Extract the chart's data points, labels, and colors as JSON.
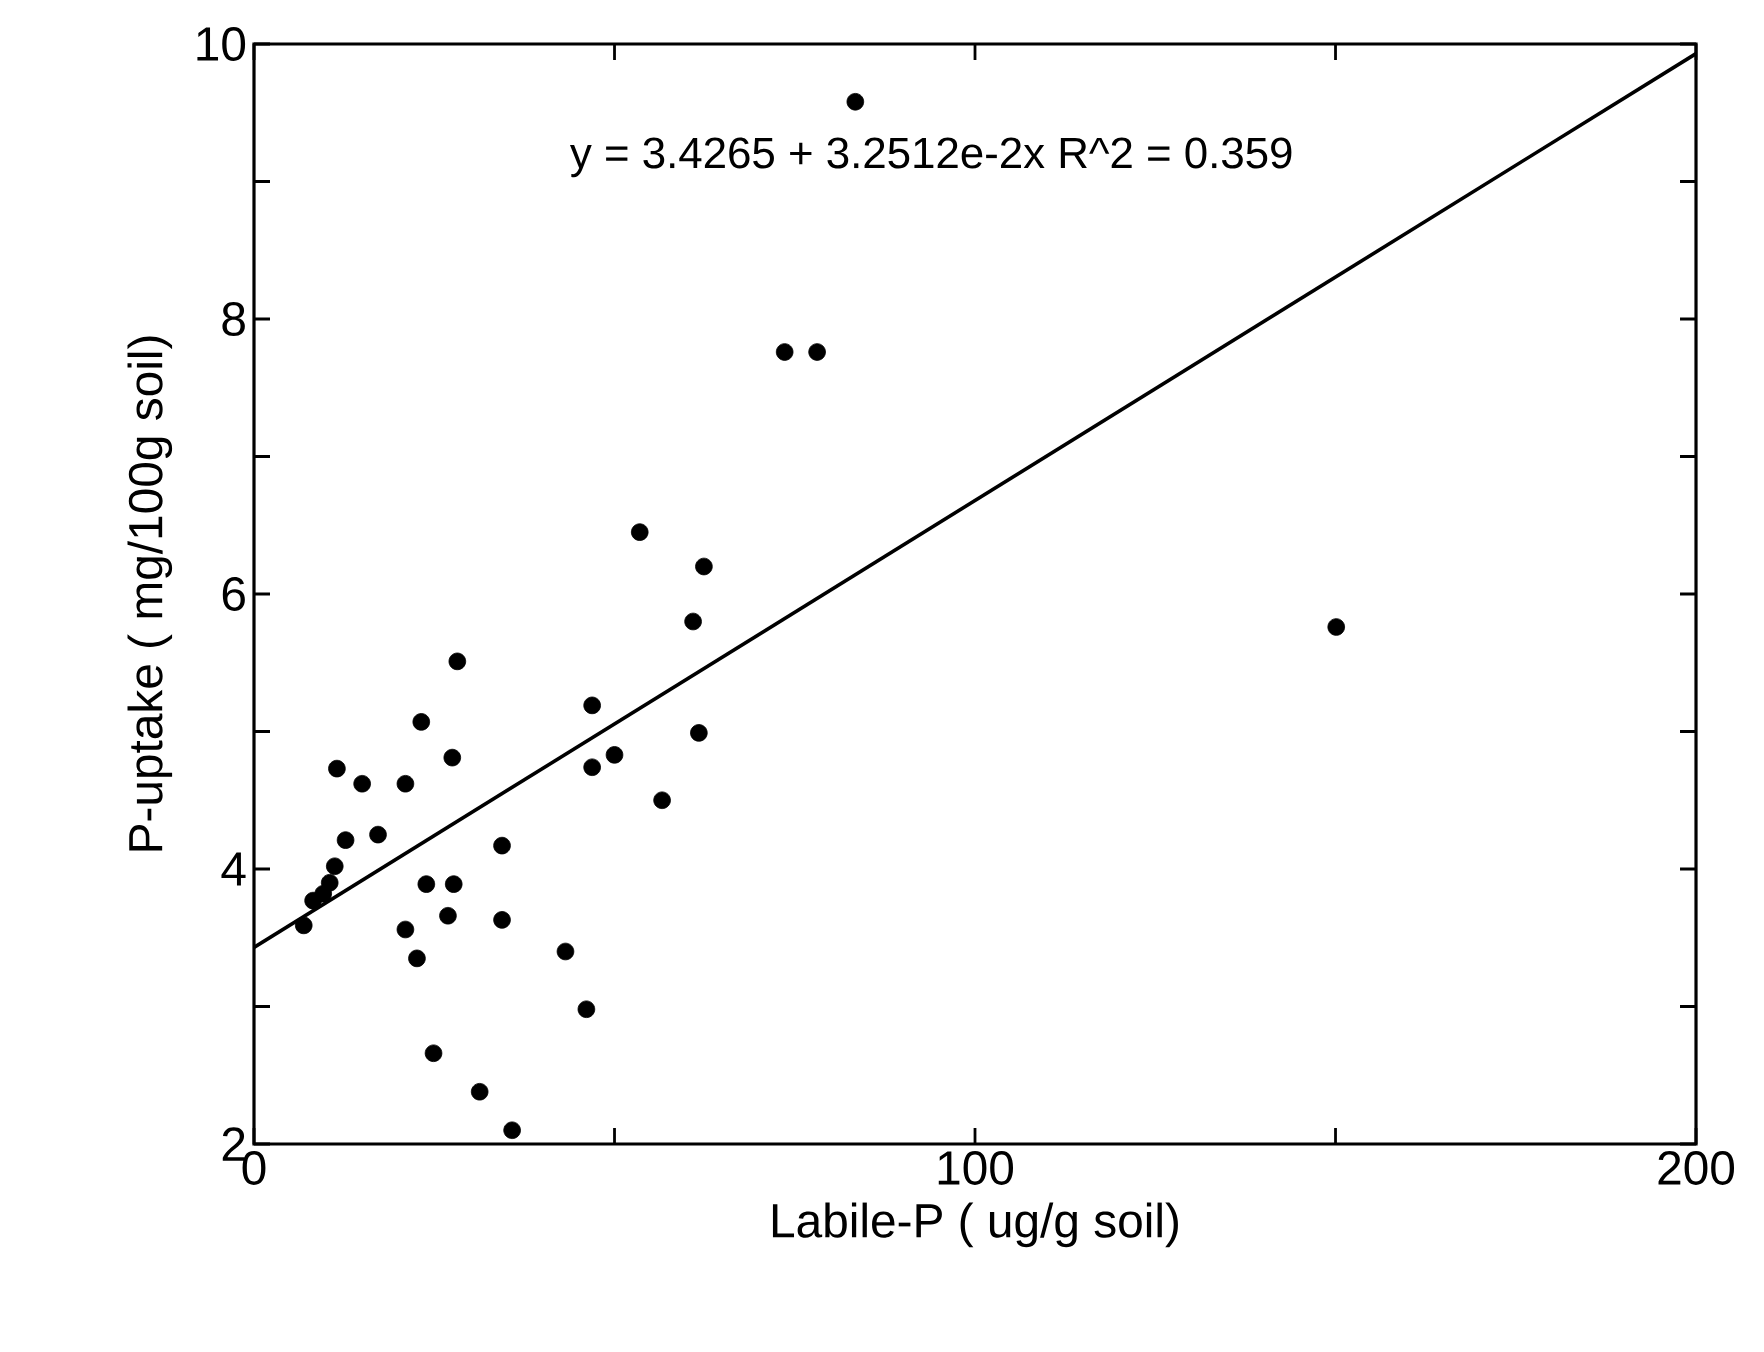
{
  "chart_data": {
    "type": "scatter",
    "xlabel": "Labile-P ( ug/g soil)",
    "ylabel": "P-uptake ( mg/100g soil)",
    "annotations": [
      "y = 3.4265 + 3.2512e-2x   R^2 = 0.359"
    ],
    "xlim": [
      0,
      200
    ],
    "ylim": [
      2,
      10
    ],
    "xticks": [
      0,
      {
        "value": 50,
        "label": null
      },
      100,
      {
        "value": 150,
        "label": null
      },
      200
    ],
    "yticks": [
      2,
      {
        "value": 3,
        "label": null
      },
      4,
      {
        "value": 5,
        "label": null
      },
      6,
      {
        "value": 7,
        "label": null
      },
      8,
      {
        "value": 9,
        "label": null
      },
      10
    ],
    "grid": false,
    "series": [
      {
        "color": "#000000",
        "marker": "circle",
        "x": [
          6.9,
          8.2,
          9.6,
          10.5,
          11.2,
          11.5,
          12.7,
          15.0,
          17.2,
          21.0,
          23.2,
          28.2,
          27.5,
          23.9,
          27.7,
          26.9,
          21.0,
          22.6,
          24.9,
          31.3,
          35.8,
          34.4,
          34.4,
          43.2,
          46.1,
          46.9,
          46.9,
          50.0,
          56.6,
          61.7,
          60.9,
          83.4,
          73.6,
          78.1,
          53.5,
          62.4,
          150.1
        ],
        "values": [
          3.59,
          3.77,
          3.82,
          3.9,
          4.02,
          4.73,
          4.21,
          4.62,
          4.25,
          4.62,
          5.07,
          5.51,
          4.81,
          3.89,
          3.89,
          3.66,
          3.56,
          3.35,
          2.66,
          2.38,
          2.1,
          4.17,
          3.63,
          3.4,
          2.98,
          5.19,
          4.74,
          4.83,
          4.5,
          4.99,
          5.8,
          9.58,
          7.76,
          7.76,
          6.45,
          6.2,
          5.76
        ]
      },
      {
        "type": "line",
        "color": "#000000",
        "marker": "none",
        "line_style": "solid",
        "x": [
          0,
          200
        ],
        "values": [
          3.43,
          9.93
        ]
      }
    ]
  }
}
